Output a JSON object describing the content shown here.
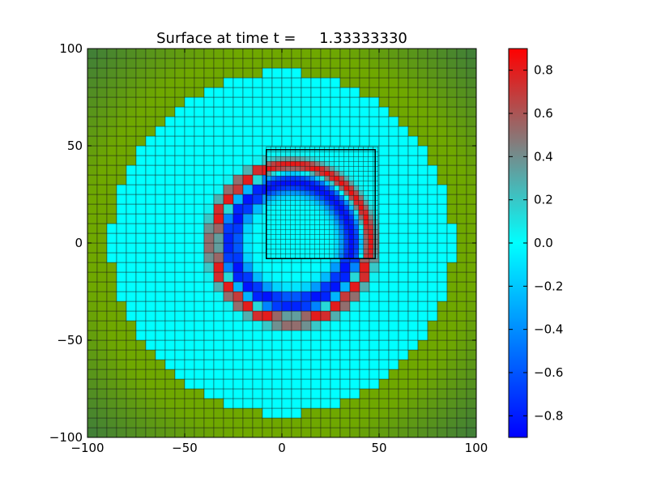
{
  "chart_data": {
    "type": "heatmap",
    "title": "Surface at time t =     1.33333330",
    "xlim": [
      -100,
      100
    ],
    "ylim": [
      -100,
      100
    ],
    "xticks": [
      -100,
      -50,
      0,
      50,
      100
    ],
    "yticks": [
      -100,
      -50,
      0,
      50,
      100
    ],
    "xtick_labels": [
      "−100",
      "−50",
      "0",
      "50",
      "100"
    ],
    "ytick_labels": [
      "−100",
      "−50",
      "0",
      "50",
      "100"
    ],
    "grid": true,
    "coarse_grid_spacing": 5,
    "fine_patch": {
      "x": [
        -8,
        48
      ],
      "y": [
        -8,
        48
      ],
      "grid_spacing": 2.5
    },
    "colorbar": {
      "range": [
        -0.9,
        0.9
      ],
      "ticks": [
        0.8,
        0.6,
        0.4,
        0.2,
        0.0,
        -0.2,
        -0.4,
        -0.6,
        -0.8
      ],
      "tick_labels": [
        "0.8",
        "0.6",
        "0.4",
        "0.2",
        "0.0",
        "−0.2",
        "−0.4",
        "−0.6",
        "−0.8"
      ],
      "colormap": [
        {
          "value": -0.9,
          "color": "#0000ff"
        },
        {
          "value": 0.0,
          "color": "#00ffff"
        },
        {
          "value": 0.45,
          "color": "#808080"
        },
        {
          "value": 0.9,
          "color": "#ff0000"
        }
      ]
    },
    "surface": {
      "water_extent_radius": 88,
      "land_color_inner": "#6fa800",
      "land_color_outer": "#3e7d3a",
      "wave_center": [
        5,
        0
      ],
      "crest_radius": 40,
      "crest_height": 0.9,
      "trough_radius": 31,
      "trough_depth": -0.85,
      "wave_width": 3.5
    }
  }
}
